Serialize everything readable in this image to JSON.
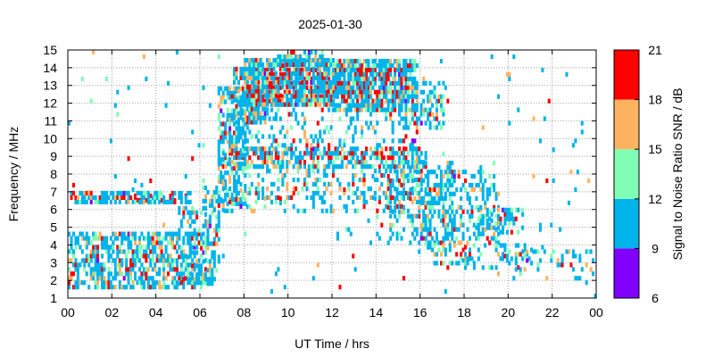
{
  "chart_data": {
    "type": "heatmap",
    "title": "2025-01-30",
    "xlabel": "UT Time / hrs",
    "ylabel": "Frequency / MHz",
    "xlim": [
      0,
      24
    ],
    "ylim": [
      1,
      15
    ],
    "x_ticks": [
      "00",
      "02",
      "04",
      "06",
      "08",
      "10",
      "12",
      "14",
      "16",
      "18",
      "20",
      "22",
      "00"
    ],
    "y_ticks": [
      "1",
      "2",
      "3",
      "4",
      "5",
      "6",
      "7",
      "8",
      "9",
      "10",
      "11",
      "12",
      "13",
      "14",
      "15"
    ],
    "grid": true,
    "colorbar": {
      "label": "Signal to Noise Ratio SNR / dB",
      "ticks": [
        "6",
        "9",
        "12",
        "15",
        "18",
        "21"
      ],
      "range": [
        6,
        21
      ],
      "bands": [
        {
          "from": 6,
          "to": 9,
          "color": "#8000ff"
        },
        {
          "from": 9,
          "to": 12,
          "color": "#00b4eb"
        },
        {
          "from": 12,
          "to": 15,
          "color": "#80ffb4"
        },
        {
          "from": 15,
          "to": 18,
          "color": "#ffb360"
        },
        {
          "from": 18,
          "to": 21,
          "color": "#ff0000"
        }
      ]
    },
    "regions": [
      {
        "t": [
          0.0,
          6.2
        ],
        "f": [
          1.5,
          4.6
        ],
        "d": 0.55
      },
      {
        "t": [
          0.0,
          5.5
        ],
        "f": [
          6.3,
          6.8
        ],
        "d": 0.65
      },
      {
        "t": [
          5.0,
          6.8
        ],
        "f": [
          1.7,
          6.0
        ],
        "d": 0.45
      },
      {
        "t": [
          6.1,
          7.1
        ],
        "f": [
          5.6,
          7.1
        ],
        "d": 0.45
      },
      {
        "t": [
          6.8,
          8.0
        ],
        "f": [
          6.2,
          12.8
        ],
        "d": 0.55
      },
      {
        "t": [
          7.5,
          9.0
        ],
        "f": [
          10.8,
          13.9
        ],
        "d": 0.75
      },
      {
        "t": [
          8.0,
          12.0
        ],
        "f": [
          11.8,
          14.4
        ],
        "d": 0.85
      },
      {
        "t": [
          9.5,
          11.5
        ],
        "f": [
          14.0,
          15.0
        ],
        "d": 0.5
      },
      {
        "t": [
          12.0,
          15.8
        ],
        "f": [
          11.5,
          14.3
        ],
        "d": 0.8
      },
      {
        "t": [
          15.0,
          17.0
        ],
        "f": [
          10.5,
          13.2
        ],
        "d": 0.45
      },
      {
        "t": [
          7.0,
          16.2
        ],
        "f": [
          8.3,
          9.5
        ],
        "d": 0.6
      },
      {
        "t": [
          7.0,
          16.0
        ],
        "f": [
          5.8,
          8.2
        ],
        "d": 0.28
      },
      {
        "t": [
          7.0,
          16.0
        ],
        "f": [
          9.5,
          11.5
        ],
        "d": 0.18
      },
      {
        "t": [
          14.5,
          17.5
        ],
        "f": [
          4.0,
          8.5
        ],
        "d": 0.35
      },
      {
        "t": [
          16.0,
          19.5
        ],
        "f": [
          4.0,
          8.0
        ],
        "d": 0.3
      },
      {
        "t": [
          18.5,
          20.6
        ],
        "f": [
          4.6,
          6.0
        ],
        "d": 0.5
      },
      {
        "t": [
          16.5,
          21.0
        ],
        "f": [
          2.6,
          4.0
        ],
        "d": 0.25
      },
      {
        "t": [
          19.5,
          24.0
        ],
        "f": [
          2.0,
          3.5
        ],
        "d": 0.15
      },
      {
        "t": [
          0.0,
          24.0
        ],
        "f": [
          1.0,
          15.0
        ],
        "d": 0.012
      }
    ],
    "hot_spots": [
      {
        "t": [
          8.5,
          14.8
        ],
        "f": [
          12.0,
          13.8
        ],
        "level": 19.5,
        "d": 0.25
      },
      {
        "t": [
          7.0,
          15.5
        ],
        "f": [
          8.8,
          9.4
        ],
        "level": 19.5,
        "d": 0.2
      },
      {
        "t": [
          3.0,
          5.5
        ],
        "f": [
          6.4,
          6.8
        ],
        "level": 19.5,
        "d": 0.15
      },
      {
        "t": [
          6.5,
          8.5
        ],
        "f": [
          15.0,
          15.0
        ],
        "level": 19.5,
        "d": 0.5
      }
    ]
  }
}
